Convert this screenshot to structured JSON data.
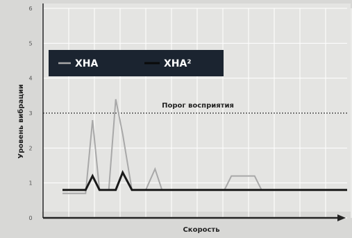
{
  "chart_data": {
    "type": "line",
    "xlabel": "Скорость",
    "ylabel": "Уровень вибрации",
    "ylim": [
      0,
      6
    ],
    "yticks": [
      "0",
      "1",
      "2",
      "3",
      "4",
      "5",
      "6"
    ],
    "grid": true,
    "legend_position": "top-left",
    "threshold": {
      "label": "Порог восприятия",
      "value": 3
    },
    "x": [
      0,
      0.5,
      1,
      1.3,
      1.6,
      2,
      2.3,
      2.6,
      3,
      3.3,
      3.6,
      4,
      4.3,
      4.6,
      5,
      5.3,
      5.6,
      6,
      6.3,
      6.6,
      7,
      7.3,
      7.6,
      8,
      8.3,
      8.6,
      9,
      9.3,
      9.6,
      10,
      10.3,
      10.6,
      11,
      11.3,
      11.6,
      12,
      12.3
    ],
    "series": [
      {
        "name": "XHA",
        "color": "#a8a8a8",
        "values": [
          0.7,
          0.7,
          0.7,
          2.8,
          0.8,
          0.8,
          3.4,
          2.4,
          0.8,
          0.8,
          0.8,
          1.4,
          0.8,
          0.8,
          0.8,
          0.8,
          0.8,
          0.8,
          0.8,
          0.8,
          0.8,
          1.2,
          1.2,
          1.2,
          1.2,
          0.8,
          0.8,
          0.8,
          0.8,
          0.8,
          0.8,
          0.8,
          0.8,
          0.8,
          0.8,
          0.8,
          0.8
        ]
      },
      {
        "name": "XHA²",
        "color": "#1a1a1a",
        "values": [
          0.8,
          0.8,
          0.8,
          1.2,
          0.8,
          0.8,
          0.8,
          1.3,
          0.8,
          0.8,
          0.8,
          0.8,
          0.8,
          0.8,
          0.8,
          0.8,
          0.8,
          0.8,
          0.8,
          0.8,
          0.8,
          0.8,
          0.8,
          0.8,
          0.8,
          0.8,
          0.8,
          0.8,
          0.8,
          0.8,
          0.8,
          0.8,
          0.8,
          0.8,
          0.8,
          0.8,
          0.8
        ]
      }
    ]
  },
  "colors": {
    "legend_bg": "#1b2430",
    "grid": "#ffffff",
    "threshold": "#333333",
    "axis": "#222222"
  }
}
